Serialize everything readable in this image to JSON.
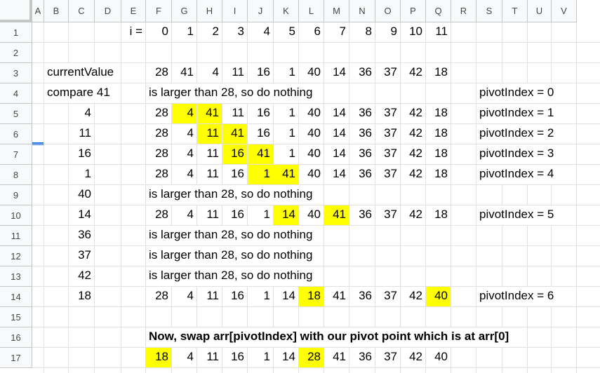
{
  "columns": [
    "A",
    "B",
    "C",
    "D",
    "E",
    "F",
    "G",
    "H",
    "I",
    "J",
    "K",
    "L",
    "M",
    "N",
    "O",
    "P",
    "Q",
    "R",
    "S",
    "T",
    "U",
    "V"
  ],
  "rows": [
    "1",
    "2",
    "3",
    "4",
    "5",
    "6",
    "7",
    "8",
    "9",
    "10",
    "11",
    "12",
    "13",
    "14",
    "15",
    "16",
    "17"
  ],
  "colors": {
    "highlight": "#ffff00",
    "header_bg": "#f8f9fa",
    "gridline": "#e1e1e1",
    "selection_accent": "#1a73e8"
  },
  "cells": [
    {
      "name": "cell-E1",
      "text": "i =",
      "align": "num"
    },
    {
      "name": "cell-F1",
      "text": "0",
      "align": "num"
    },
    {
      "name": "cell-G1",
      "text": "1",
      "align": "num"
    },
    {
      "name": "cell-H1",
      "text": "2",
      "align": "num"
    },
    {
      "name": "cell-I1",
      "text": "3",
      "align": "num"
    },
    {
      "name": "cell-J1",
      "text": "4",
      "align": "num"
    },
    {
      "name": "cell-K1",
      "text": "5",
      "align": "num"
    },
    {
      "name": "cell-L1",
      "text": "6",
      "align": "num"
    },
    {
      "name": "cell-M1",
      "text": "7",
      "align": "num"
    },
    {
      "name": "cell-N1",
      "text": "8",
      "align": "num"
    },
    {
      "name": "cell-O1",
      "text": "9",
      "align": "num"
    },
    {
      "name": "cell-P1",
      "text": "10",
      "align": "num"
    },
    {
      "name": "cell-Q1",
      "text": "11",
      "align": "num"
    },
    {
      "name": "cell-B3",
      "text": "currentValue",
      "align": "txt"
    },
    {
      "name": "cell-F3",
      "text": "28",
      "align": "num"
    },
    {
      "name": "cell-G3",
      "text": "41",
      "align": "num"
    },
    {
      "name": "cell-H3",
      "text": "4",
      "align": "num"
    },
    {
      "name": "cell-I3",
      "text": "11",
      "align": "num"
    },
    {
      "name": "cell-J3",
      "text": "16",
      "align": "num"
    },
    {
      "name": "cell-K3",
      "text": "1",
      "align": "num"
    },
    {
      "name": "cell-L3",
      "text": "40",
      "align": "num"
    },
    {
      "name": "cell-M3",
      "text": "14",
      "align": "num"
    },
    {
      "name": "cell-N3",
      "text": "36",
      "align": "num"
    },
    {
      "name": "cell-O3",
      "text": "37",
      "align": "num"
    },
    {
      "name": "cell-P3",
      "text": "42",
      "align": "num"
    },
    {
      "name": "cell-Q3",
      "text": "18",
      "align": "num"
    },
    {
      "name": "cell-B4",
      "text": "compare 41",
      "align": "txt"
    },
    {
      "name": "cell-F4",
      "text": "is larger than 28, so do nothing",
      "align": "txt"
    },
    {
      "name": "cell-S4",
      "text": "pivotIndex = 0",
      "align": "txt"
    },
    {
      "name": "cell-C5",
      "text": "4",
      "align": "num"
    },
    {
      "name": "cell-F5",
      "text": "28",
      "align": "num"
    },
    {
      "name": "cell-G5",
      "text": "4",
      "align": "num",
      "hl": true
    },
    {
      "name": "cell-H5",
      "text": "41",
      "align": "num",
      "hl": true
    },
    {
      "name": "cell-I5",
      "text": "11",
      "align": "num"
    },
    {
      "name": "cell-J5",
      "text": "16",
      "align": "num"
    },
    {
      "name": "cell-K5",
      "text": "1",
      "align": "num"
    },
    {
      "name": "cell-L5",
      "text": "40",
      "align": "num"
    },
    {
      "name": "cell-M5",
      "text": "14",
      "align": "num"
    },
    {
      "name": "cell-N5",
      "text": "36",
      "align": "num"
    },
    {
      "name": "cell-O5",
      "text": "37",
      "align": "num"
    },
    {
      "name": "cell-P5",
      "text": "42",
      "align": "num"
    },
    {
      "name": "cell-Q5",
      "text": "18",
      "align": "num"
    },
    {
      "name": "cell-S5",
      "text": "pivotIndex = 1",
      "align": "txt"
    },
    {
      "name": "cell-C6",
      "text": "11",
      "align": "num"
    },
    {
      "name": "cell-F6",
      "text": "28",
      "align": "num"
    },
    {
      "name": "cell-G6",
      "text": "4",
      "align": "num"
    },
    {
      "name": "cell-H6",
      "text": "11",
      "align": "num",
      "hl": true
    },
    {
      "name": "cell-I6",
      "text": "41",
      "align": "num",
      "hl": true
    },
    {
      "name": "cell-J6",
      "text": "16",
      "align": "num"
    },
    {
      "name": "cell-K6",
      "text": "1",
      "align": "num"
    },
    {
      "name": "cell-L6",
      "text": "40",
      "align": "num"
    },
    {
      "name": "cell-M6",
      "text": "14",
      "align": "num"
    },
    {
      "name": "cell-N6",
      "text": "36",
      "align": "num"
    },
    {
      "name": "cell-O6",
      "text": "37",
      "align": "num"
    },
    {
      "name": "cell-P6",
      "text": "42",
      "align": "num"
    },
    {
      "name": "cell-Q6",
      "text": "18",
      "align": "num"
    },
    {
      "name": "cell-S6",
      "text": "pivotIndex = 2",
      "align": "txt"
    },
    {
      "name": "cell-C7",
      "text": "16",
      "align": "num"
    },
    {
      "name": "cell-F7",
      "text": "28",
      "align": "num"
    },
    {
      "name": "cell-G7",
      "text": "4",
      "align": "num"
    },
    {
      "name": "cell-H7",
      "text": "11",
      "align": "num"
    },
    {
      "name": "cell-I7",
      "text": "16",
      "align": "num",
      "hl": true
    },
    {
      "name": "cell-J7",
      "text": "41",
      "align": "num",
      "hl": true
    },
    {
      "name": "cell-K7",
      "text": "1",
      "align": "num"
    },
    {
      "name": "cell-L7",
      "text": "40",
      "align": "num"
    },
    {
      "name": "cell-M7",
      "text": "14",
      "align": "num"
    },
    {
      "name": "cell-N7",
      "text": "36",
      "align": "num"
    },
    {
      "name": "cell-O7",
      "text": "37",
      "align": "num"
    },
    {
      "name": "cell-P7",
      "text": "42",
      "align": "num"
    },
    {
      "name": "cell-Q7",
      "text": "18",
      "align": "num"
    },
    {
      "name": "cell-S7",
      "text": "pivotIndex = 3",
      "align": "txt"
    },
    {
      "name": "cell-C8",
      "text": "1",
      "align": "num"
    },
    {
      "name": "cell-F8",
      "text": "28",
      "align": "num"
    },
    {
      "name": "cell-G8",
      "text": "4",
      "align": "num"
    },
    {
      "name": "cell-H8",
      "text": "11",
      "align": "num"
    },
    {
      "name": "cell-I8",
      "text": "16",
      "align": "num"
    },
    {
      "name": "cell-J8",
      "text": "1",
      "align": "num",
      "hl": true
    },
    {
      "name": "cell-K8",
      "text": "41",
      "align": "num",
      "hl": true
    },
    {
      "name": "cell-L8",
      "text": "40",
      "align": "num"
    },
    {
      "name": "cell-M8",
      "text": "14",
      "align": "num"
    },
    {
      "name": "cell-N8",
      "text": "36",
      "align": "num"
    },
    {
      "name": "cell-O8",
      "text": "37",
      "align": "num"
    },
    {
      "name": "cell-P8",
      "text": "42",
      "align": "num"
    },
    {
      "name": "cell-Q8",
      "text": "18",
      "align": "num"
    },
    {
      "name": "cell-S8",
      "text": "pivotIndex = 4",
      "align": "txt"
    },
    {
      "name": "cell-C9",
      "text": "40",
      "align": "num"
    },
    {
      "name": "cell-F9",
      "text": "is larger than 28, so do nothing",
      "align": "txt"
    },
    {
      "name": "cell-C10",
      "text": "14",
      "align": "num"
    },
    {
      "name": "cell-F10",
      "text": "28",
      "align": "num"
    },
    {
      "name": "cell-G10",
      "text": "4",
      "align": "num"
    },
    {
      "name": "cell-H10",
      "text": "11",
      "align": "num"
    },
    {
      "name": "cell-I10",
      "text": "16",
      "align": "num"
    },
    {
      "name": "cell-J10",
      "text": "1",
      "align": "num"
    },
    {
      "name": "cell-K10",
      "text": "14",
      "align": "num",
      "hl": true
    },
    {
      "name": "cell-L10",
      "text": "40",
      "align": "num"
    },
    {
      "name": "cell-M10",
      "text": "41",
      "align": "num",
      "hl": true
    },
    {
      "name": "cell-N10",
      "text": "36",
      "align": "num"
    },
    {
      "name": "cell-O10",
      "text": "37",
      "align": "num"
    },
    {
      "name": "cell-P10",
      "text": "42",
      "align": "num"
    },
    {
      "name": "cell-Q10",
      "text": "18",
      "align": "num"
    },
    {
      "name": "cell-S10",
      "text": "pivotIndex = 5",
      "align": "txt"
    },
    {
      "name": "cell-C11",
      "text": "36",
      "align": "num"
    },
    {
      "name": "cell-F11",
      "text": "is larger than 28, so do nothing",
      "align": "txt"
    },
    {
      "name": "cell-C12",
      "text": "37",
      "align": "num"
    },
    {
      "name": "cell-F12",
      "text": "is larger than 28, so do nothing",
      "align": "txt"
    },
    {
      "name": "cell-C13",
      "text": "42",
      "align": "num"
    },
    {
      "name": "cell-F13",
      "text": "is larger than 28, so do nothing",
      "align": "txt"
    },
    {
      "name": "cell-C14",
      "text": "18",
      "align": "num"
    },
    {
      "name": "cell-F14",
      "text": "28",
      "align": "num"
    },
    {
      "name": "cell-G14",
      "text": "4",
      "align": "num"
    },
    {
      "name": "cell-H14",
      "text": "11",
      "align": "num"
    },
    {
      "name": "cell-I14",
      "text": "16",
      "align": "num"
    },
    {
      "name": "cell-J14",
      "text": "1",
      "align": "num"
    },
    {
      "name": "cell-K14",
      "text": "14",
      "align": "num"
    },
    {
      "name": "cell-L14",
      "text": "18",
      "align": "num",
      "hl": true
    },
    {
      "name": "cell-M14",
      "text": "41",
      "align": "num"
    },
    {
      "name": "cell-N14",
      "text": "36",
      "align": "num"
    },
    {
      "name": "cell-O14",
      "text": "37",
      "align": "num"
    },
    {
      "name": "cell-P14",
      "text": "42",
      "align": "num"
    },
    {
      "name": "cell-Q14",
      "text": "40",
      "align": "num",
      "hl": true
    },
    {
      "name": "cell-S14",
      "text": "pivotIndex = 6",
      "align": "txt"
    },
    {
      "name": "cell-F16",
      "text": "Now, swap arr[pivotIndex] with our pivot point which is at arr[0]",
      "align": "txt",
      "bold": true
    },
    {
      "name": "cell-F17",
      "text": "18",
      "align": "num",
      "hl": true
    },
    {
      "name": "cell-G17",
      "text": "4",
      "align": "num"
    },
    {
      "name": "cell-H17",
      "text": "11",
      "align": "num"
    },
    {
      "name": "cell-I17",
      "text": "16",
      "align": "num"
    },
    {
      "name": "cell-J17",
      "text": "1",
      "align": "num"
    },
    {
      "name": "cell-K17",
      "text": "14",
      "align": "num"
    },
    {
      "name": "cell-L17",
      "text": "28",
      "align": "num",
      "hl": true
    },
    {
      "name": "cell-M17",
      "text": "41",
      "align": "num"
    },
    {
      "name": "cell-N17",
      "text": "36",
      "align": "num"
    },
    {
      "name": "cell-O17",
      "text": "37",
      "align": "num"
    },
    {
      "name": "cell-P17",
      "text": "42",
      "align": "num"
    },
    {
      "name": "cell-Q17",
      "text": "40",
      "align": "num"
    }
  ]
}
